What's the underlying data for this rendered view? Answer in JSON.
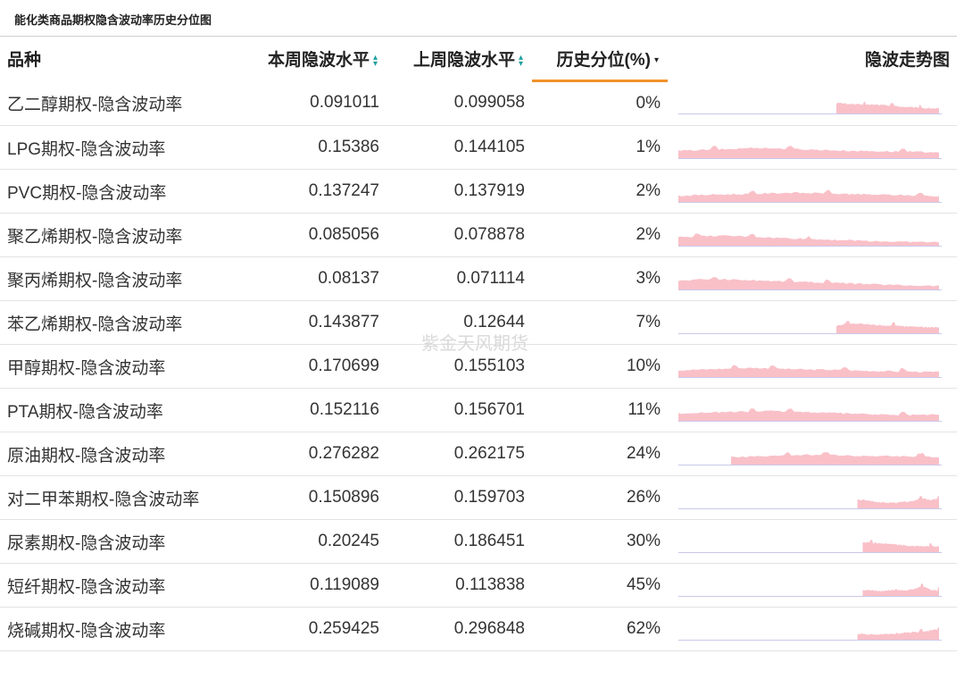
{
  "page_title": "能化类商品期权隐含波动率历史分位图",
  "watermark": "紫金天风期货",
  "table": {
    "headers": {
      "name": "品种",
      "this_week": "本周隐波水平",
      "last_week": "上周隐波水平",
      "percentile": "历史分位(%)",
      "trend": "隐波走势图"
    }
  },
  "colors": {
    "sparkline_fill": "#f9c0c8",
    "sparkline_axis": "#c9c9ea",
    "sort_accent": "#1f9e9e",
    "header_underline": "#f0922b"
  },
  "chart_data": {
    "type": "table",
    "columns": [
      "品种",
      "本周隐波水平",
      "上周隐波水平",
      "历史分位(%)",
      "隐波走势图"
    ],
    "rows": [
      {
        "name": "乙二醇期权-隐含波动率",
        "this_week": "0.091011",
        "last_week": "0.099058",
        "percentile": "0%",
        "start_frac": 0.6,
        "shape": [
          0.85,
          0.8,
          0.75,
          0.7,
          0.72,
          0.68,
          0.6,
          0.55,
          0.5,
          0.45,
          0.42,
          0.4
        ],
        "peaks": [
          3,
          6,
          9
        ]
      },
      {
        "name": "LPG期权-隐含波动率",
        "this_week": "0.15386",
        "last_week": "0.144105",
        "percentile": "1%",
        "start_frac": 0.0,
        "shape": [
          0.6,
          0.65,
          0.7,
          0.75,
          0.85,
          0.8,
          0.75,
          0.7,
          0.65,
          0.6,
          0.58,
          0.55,
          0.52,
          0.5,
          0.5
        ],
        "peaks": [
          2,
          6,
          12
        ]
      },
      {
        "name": "PVC期权-隐含波动率",
        "this_week": "0.137247",
        "last_week": "0.137919",
        "percentile": "2%",
        "start_frac": 0.0,
        "shape": [
          0.5,
          0.55,
          0.6,
          0.62,
          0.65,
          0.7,
          0.75,
          0.72,
          0.68,
          0.65,
          0.6,
          0.58,
          0.55,
          0.5,
          0.45
        ],
        "peaks": [
          4,
          8,
          13
        ]
      },
      {
        "name": "聚乙烯期权-隐含波动率",
        "this_week": "0.085056",
        "last_week": "0.078878",
        "percentile": "2%",
        "start_frac": 0.0,
        "shape": [
          0.7,
          0.75,
          0.8,
          0.78,
          0.72,
          0.65,
          0.6,
          0.55,
          0.5,
          0.45,
          0.4,
          0.35,
          0.32,
          0.3,
          0.28
        ],
        "peaks": [
          1,
          4,
          7
        ]
      },
      {
        "name": "聚丙烯期权-隐含波动率",
        "this_week": "0.08137",
        "last_week": "0.071114",
        "percentile": "3%",
        "start_frac": 0.0,
        "shape": [
          0.7,
          0.8,
          0.85,
          0.8,
          0.75,
          0.7,
          0.65,
          0.6,
          0.55,
          0.5,
          0.45,
          0.4,
          0.35,
          0.32,
          0.3
        ],
        "peaks": [
          2,
          6,
          8
        ]
      },
      {
        "name": "苯乙烯期权-隐含波动率",
        "this_week": "0.143877",
        "last_week": "0.12644",
        "percentile": "7%",
        "start_frac": 0.6,
        "shape": [
          0.6,
          0.8,
          0.75,
          0.7,
          0.65,
          0.6,
          0.55,
          0.55,
          0.5,
          0.5
        ],
        "peaks": [
          1,
          5
        ]
      },
      {
        "name": "甲醇期权-隐含波动率",
        "this_week": "0.170699",
        "last_week": "0.155103",
        "percentile": "10%",
        "start_frac": 0.0,
        "shape": [
          0.55,
          0.6,
          0.65,
          0.7,
          0.75,
          0.7,
          0.65,
          0.6,
          0.6,
          0.55,
          0.5,
          0.48,
          0.45,
          0.42,
          0.4
        ],
        "peaks": [
          3,
          5,
          9,
          12
        ]
      },
      {
        "name": "PTA期权-隐含波动率",
        "this_week": "0.152116",
        "last_week": "0.156701",
        "percentile": "11%",
        "start_frac": 0.0,
        "shape": [
          0.6,
          0.65,
          0.7,
          0.72,
          0.75,
          0.8,
          0.75,
          0.7,
          0.65,
          0.6,
          0.55,
          0.5,
          0.45,
          0.5,
          0.48
        ],
        "peaks": [
          4,
          6,
          12
        ]
      },
      {
        "name": "原油期权-隐含波动率",
        "this_week": "0.276282",
        "last_week": "0.262175",
        "percentile": "24%",
        "start_frac": 0.2,
        "shape": [
          0.6,
          0.65,
          0.7,
          0.75,
          0.8,
          0.78,
          0.75,
          0.7,
          0.7,
          0.68,
          0.65,
          0.62
        ],
        "peaks": [
          3,
          5,
          10
        ]
      },
      {
        "name": "对二甲苯期权-隐含波动率",
        "this_week": "0.150896",
        "last_week": "0.159703",
        "percentile": "26%",
        "start_frac": 0.68,
        "shape": [
          0.7,
          0.65,
          0.55,
          0.5,
          0.45,
          0.5,
          0.6,
          0.8,
          0.7,
          0.85
        ],
        "peaks": [
          7,
          9
        ]
      },
      {
        "name": "尿素期权-隐含波动率",
        "this_week": "0.20245",
        "last_week": "0.186451",
        "percentile": "30%",
        "start_frac": 0.7,
        "shape": [
          0.8,
          0.75,
          0.7,
          0.65,
          0.6,
          0.55,
          0.5,
          0.5,
          0.45,
          0.45
        ],
        "peaks": [
          1,
          8
        ]
      },
      {
        "name": "短纤期权-隐含波动率",
        "this_week": "0.119089",
        "last_week": "0.113838",
        "percentile": "45%",
        "start_frac": 0.7,
        "shape": [
          0.5,
          0.45,
          0.4,
          0.45,
          0.5,
          0.45,
          0.55,
          0.8,
          0.5,
          0.45
        ],
        "peaks": [
          7,
          9
        ]
      },
      {
        "name": "烧碱期权-隐含波动率",
        "this_week": "0.259425",
        "last_week": "0.296848",
        "percentile": "62%",
        "start_frac": 0.68,
        "shape": [
          0.5,
          0.45,
          0.4,
          0.45,
          0.5,
          0.55,
          0.6,
          0.65,
          0.75,
          0.85
        ],
        "peaks": [
          7,
          9
        ]
      }
    ]
  }
}
